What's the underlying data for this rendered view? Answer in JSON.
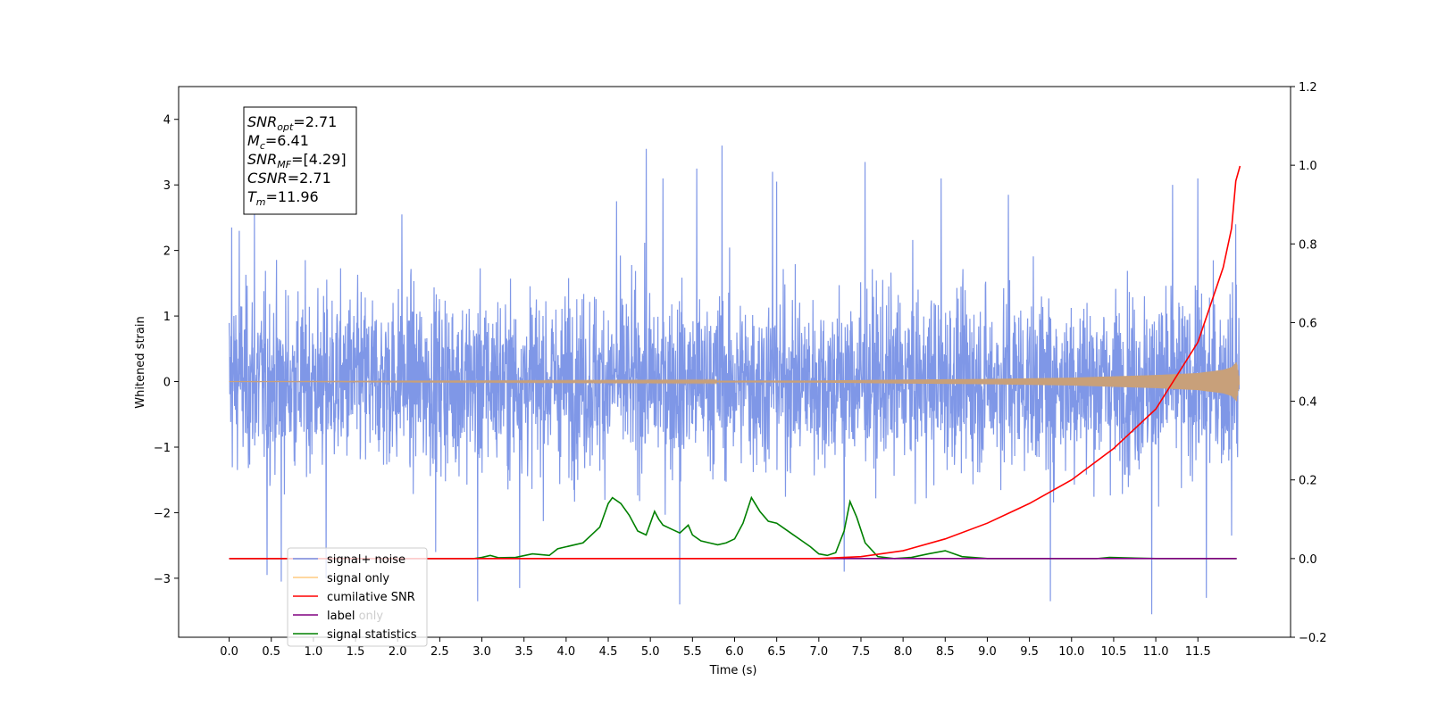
{
  "chart_data": {
    "type": "line",
    "xlabel": "Time (s)",
    "ylabel": "Whitened strain",
    "xlim": [
      -0.6,
      12.6
    ],
    "ylim": [
      -3.9,
      4.5
    ],
    "y2lim": [
      -0.2,
      1.2
    ],
    "x_ticks": [
      0.0,
      0.5,
      1.0,
      1.5,
      2.0,
      2.5,
      3.0,
      3.5,
      4.0,
      4.5,
      5.0,
      5.5,
      6.0,
      6.5,
      7.0,
      7.5,
      8.0,
      8.5,
      9.0,
      9.5,
      10.0,
      10.5,
      11.0,
      11.5
    ],
    "x_tick_labels": [
      "0.0",
      "0.5",
      "1.0",
      "1.5",
      "2.0",
      "2.5",
      "3.0",
      "3.5",
      "4.0",
      "4.5",
      "5.0",
      "5.5",
      "6.0",
      "6.5",
      "7.0",
      "7.5",
      "8.0",
      "8.5",
      "9.0",
      "9.5",
      "10.0",
      "10.5",
      "11.0",
      "11.5"
    ],
    "y_ticks": [
      -3,
      -2,
      -1,
      0,
      1,
      2,
      3,
      4
    ],
    "y_tick_labels": [
      "−3",
      "−2",
      "−1",
      "0",
      "1",
      "2",
      "3",
      "4"
    ],
    "y2_ticks": [
      -0.2,
      0.0,
      0.2,
      0.4,
      0.6,
      0.8,
      1.0,
      1.2
    ],
    "y2_tick_labels": [
      "−0.2",
      "0.0",
      "0.2",
      "0.4",
      "0.6",
      "0.8",
      "1.0",
      "1.2"
    ],
    "grid": false,
    "legend_position": "lower-left",
    "series": [
      {
        "name": "signal+ noise",
        "axis": "left",
        "color": "#7891e6",
        "x_range": [
          0.0,
          11.99
        ],
        "envelope_typical": [
          -1.5,
          1.5
        ],
        "envelope_extreme": [
          -3.55,
          3.6
        ],
        "peaks": [
          {
            "x": 0.03,
            "y": 2.35
          },
          {
            "x": 0.12,
            "y": 2.3
          },
          {
            "x": 0.3,
            "y": 2.6
          },
          {
            "x": 0.45,
            "y": -2.95
          },
          {
            "x": 0.62,
            "y": -3.05
          },
          {
            "x": 1.15,
            "y": -3.0
          },
          {
            "x": 2.05,
            "y": 2.55
          },
          {
            "x": 2.45,
            "y": -2.6
          },
          {
            "x": 2.95,
            "y": -3.35
          },
          {
            "x": 3.45,
            "y": -3.15
          },
          {
            "x": 4.6,
            "y": 2.75
          },
          {
            "x": 4.95,
            "y": -3.3
          },
          {
            "x": 4.95,
            "y": 3.55
          },
          {
            "x": 5.15,
            "y": 3.1
          },
          {
            "x": 5.35,
            "y": -3.4
          },
          {
            "x": 5.55,
            "y": 3.25
          },
          {
            "x": 5.85,
            "y": 3.6
          },
          {
            "x": 6.45,
            "y": 3.2
          },
          {
            "x": 6.5,
            "y": 3.05
          },
          {
            "x": 7.3,
            "y": -2.9
          },
          {
            "x": 7.55,
            "y": 3.35
          },
          {
            "x": 8.45,
            "y": 3.1
          },
          {
            "x": 9.25,
            "y": 2.85
          },
          {
            "x": 9.75,
            "y": -3.35
          },
          {
            "x": 10.95,
            "y": -3.55
          },
          {
            "x": 11.2,
            "y": 3.0
          },
          {
            "x": 11.5,
            "y": 3.1
          },
          {
            "x": 11.6,
            "y": -3.3
          },
          {
            "x": 11.9,
            "y": -2.35
          },
          {
            "x": 11.95,
            "y": 2.4
          }
        ]
      },
      {
        "name": "signal only",
        "axis": "left",
        "color": "#ffa500",
        "alpha": 0.5,
        "x": [
          0.0,
          7.0,
          8.0,
          9.0,
          10.0,
          10.5,
          11.0,
          11.5,
          11.8,
          11.9,
          11.96,
          11.99
        ],
        "amplitude": [
          0.0,
          0.015,
          0.03,
          0.04,
          0.06,
          0.08,
          0.1,
          0.13,
          0.18,
          0.22,
          0.3,
          0.05
        ]
      },
      {
        "name": "cumilative SNR",
        "axis": "right",
        "color": "#ff0000",
        "x": [
          0.0,
          7.0,
          7.5,
          8.0,
          8.5,
          9.0,
          9.5,
          10.0,
          10.5,
          11.0,
          11.5,
          11.8,
          11.9,
          11.95,
          12.0
        ],
        "values": [
          0.0,
          0.0,
          0.005,
          0.02,
          0.05,
          0.09,
          0.14,
          0.2,
          0.28,
          0.38,
          0.55,
          0.74,
          0.84,
          0.96,
          0.998
        ]
      },
      {
        "name": "label",
        "axis": "right",
        "color": "#800080",
        "x": [
          0.0,
          11.96
        ],
        "values": [
          0.0,
          0.0
        ]
      },
      {
        "name": "signal statistics",
        "axis": "right",
        "color": "#008000",
        "x": [
          0.0,
          2.9,
          3.0,
          3.1,
          3.2,
          3.4,
          3.6,
          3.8,
          3.9,
          4.0,
          4.1,
          4.2,
          4.3,
          4.4,
          4.5,
          4.55,
          4.65,
          4.75,
          4.85,
          4.95,
          5.05,
          5.1,
          5.15,
          5.25,
          5.35,
          5.45,
          5.5,
          5.6,
          5.7,
          5.8,
          5.9,
          6.0,
          6.1,
          6.2,
          6.3,
          6.4,
          6.5,
          6.6,
          6.7,
          6.8,
          6.9,
          7.0,
          7.1,
          7.2,
          7.3,
          7.37,
          7.45,
          7.55,
          7.7,
          7.9,
          8.1,
          8.3,
          8.5,
          8.7,
          9.0,
          10.3,
          10.45,
          11.0,
          11.96
        ],
        "values": [
          0.0,
          0.0,
          0.003,
          0.008,
          0.002,
          0.003,
          0.012,
          0.008,
          0.025,
          0.03,
          0.035,
          0.04,
          0.06,
          0.08,
          0.14,
          0.155,
          0.14,
          0.11,
          0.07,
          0.06,
          0.12,
          0.1,
          0.085,
          0.075,
          0.065,
          0.085,
          0.06,
          0.045,
          0.04,
          0.035,
          0.04,
          0.05,
          0.09,
          0.155,
          0.12,
          0.095,
          0.09,
          0.075,
          0.06,
          0.045,
          0.03,
          0.012,
          0.008,
          0.015,
          0.07,
          0.145,
          0.105,
          0.04,
          0.005,
          0.0,
          0.003,
          0.012,
          0.02,
          0.005,
          0.0,
          0.0,
          0.003,
          0.0,
          0.0
        ]
      }
    ],
    "annotation_lines": [
      {
        "base": "SNR",
        "sub": "opt",
        "rest": "=2.71"
      },
      {
        "base": "M",
        "sub": "c",
        "rest": "=6.41"
      },
      {
        "base": "SNR",
        "sub": "MF",
        "rest": "=[4.29]"
      },
      {
        "base": "CSNR",
        "sub": "",
        "rest": "=2.71"
      },
      {
        "base": "T",
        "sub": "m",
        "rest": "=11.96"
      }
    ],
    "legend_extra_overlap_text": "label only"
  }
}
